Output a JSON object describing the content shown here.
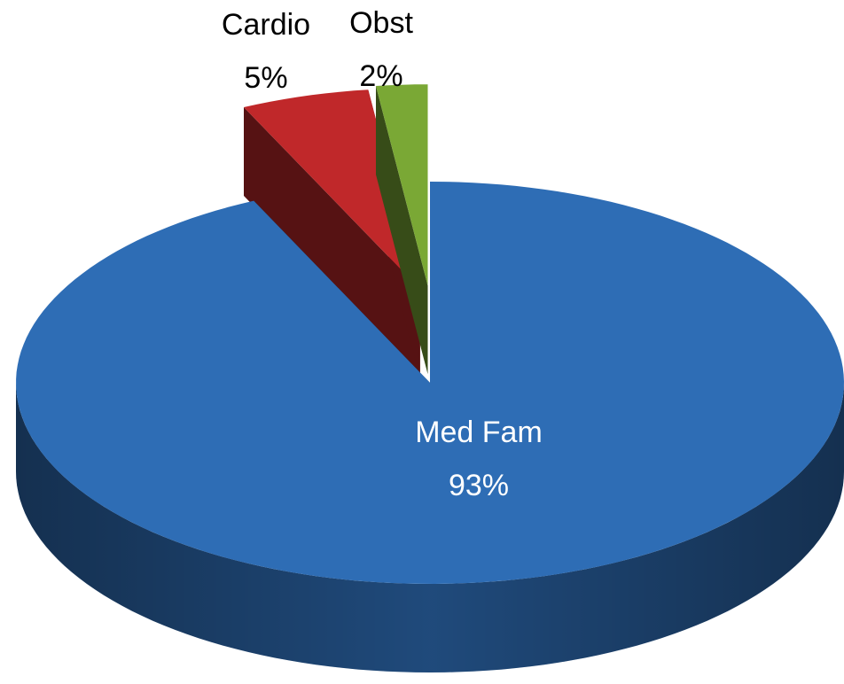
{
  "chart_data": {
    "type": "pie",
    "categories": [
      "Med Fam",
      "Cardio",
      "Obst"
    ],
    "values": [
      93,
      5,
      2
    ],
    "value_labels": [
      "93%",
      "5%",
      "2%"
    ],
    "colors": [
      "#2e6db5",
      "#c0282a",
      "#7aa835"
    ]
  }
}
